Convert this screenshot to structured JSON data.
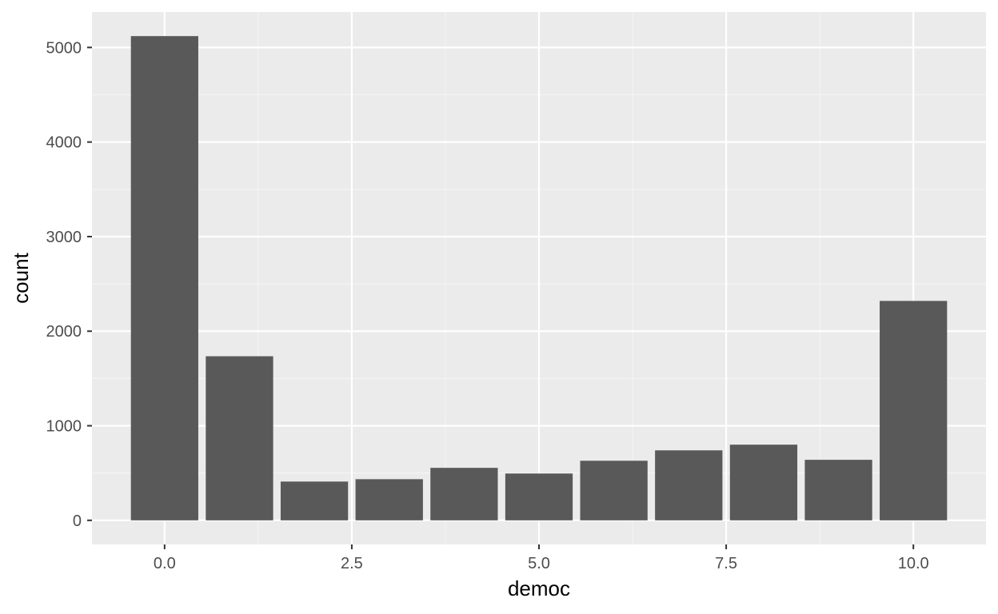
{
  "chart_data": {
    "type": "bar",
    "x": [
      0,
      1,
      2,
      3,
      4,
      5,
      6,
      7,
      8,
      9,
      10
    ],
    "values": [
      5120,
      1735,
      410,
      435,
      555,
      495,
      630,
      740,
      800,
      640,
      2320
    ],
    "xlabel": "democ",
    "ylabel": "count",
    "xlim": [
      -0.97,
      10.97
    ],
    "ylim": [
      -255,
      5375
    ],
    "x_ticks": [
      0,
      2.5,
      5,
      7.5,
      10
    ],
    "x_tick_labels": [
      "0.0",
      "2.5",
      "5.0",
      "7.5",
      "10.0"
    ],
    "y_ticks": [
      0,
      1000,
      2000,
      3000,
      4000,
      5000
    ],
    "y_tick_labels": [
      "0",
      "1000",
      "2000",
      "3000",
      "4000",
      "5000"
    ],
    "grid": true,
    "colors": {
      "panel_background": "#ebebeb",
      "grid_major": "#ffffff",
      "grid_minor": "#f5f5f5",
      "bar_fill": "#595959",
      "tick_text": "#4d4d4d",
      "tick_mark": "#333333",
      "title_text": "#000000"
    }
  }
}
